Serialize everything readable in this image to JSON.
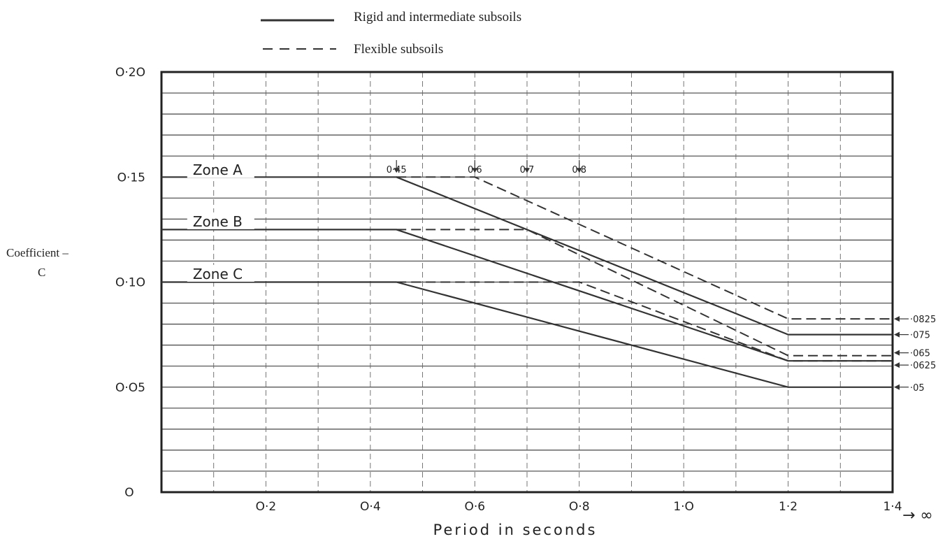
{
  "chart_data": {
    "type": "line",
    "xlabel": "Period in seconds",
    "ylabel_line1": "Coefficient –",
    "ylabel_line2": "C",
    "xlim": [
      0,
      1.4
    ],
    "ylim": [
      0,
      0.2
    ],
    "x_ticks": [
      {
        "v": 0.2,
        "label": "O·2"
      },
      {
        "v": 0.4,
        "label": "O·4"
      },
      {
        "v": 0.6,
        "label": "O·6"
      },
      {
        "v": 0.8,
        "label": "O·8"
      },
      {
        "v": 1.0,
        "label": "1·O"
      },
      {
        "v": 1.2,
        "label": "1·2"
      },
      {
        "v": 1.4,
        "label": "1·4"
      }
    ],
    "x_infinity_label": "→ ∞",
    "y_ticks": [
      {
        "v": 0,
        "label": "O"
      },
      {
        "v": 0.05,
        "label": "O·O5"
      },
      {
        "v": 0.1,
        "label": "O·1O"
      },
      {
        "v": 0.15,
        "label": "O·15"
      },
      {
        "v": 0.2,
        "label": "O·2O"
      }
    ],
    "legend": [
      {
        "label": "Rigid and intermediate subsoils",
        "style": "solid"
      },
      {
        "label": "Flexible subsoils",
        "style": "dashed"
      }
    ],
    "zone_labels": [
      {
        "text": "Zone A",
        "x": 0.06,
        "y": 0.151
      },
      {
        "text": "Zone B",
        "x": 0.06,
        "y": 0.1265
      },
      {
        "text": "Zone C",
        "x": 0.06,
        "y": 0.1015
      }
    ],
    "period_markers": [
      {
        "x": 0.45,
        "label": "0·45"
      },
      {
        "x": 0.6,
        "label": "0·6"
      },
      {
        "x": 0.7,
        "label": "0·7"
      },
      {
        "x": 0.8,
        "label": "0·8"
      }
    ],
    "right_labels": [
      {
        "y": 0.0825,
        "label": "·0825"
      },
      {
        "y": 0.075,
        "label": "·075"
      },
      {
        "y": 0.065,
        "label": "·065"
      },
      {
        "y": 0.0625,
        "label": "·0625"
      },
      {
        "y": 0.05,
        "label": "·05"
      }
    ],
    "series": [
      {
        "name": "Zone A – Rigid and intermediate subsoils",
        "style": "solid",
        "x": [
          0,
          0.45,
          1.2,
          1.4
        ],
        "y": [
          0.15,
          0.15,
          0.075,
          0.075
        ]
      },
      {
        "name": "Zone A – Flexible subsoils",
        "style": "dashed",
        "x": [
          0.45,
          0.6,
          1.2,
          1.4
        ],
        "y": [
          0.15,
          0.15,
          0.0825,
          0.0825
        ]
      },
      {
        "name": "Zone B – Rigid and intermediate subsoils",
        "style": "solid",
        "x": [
          0,
          0.45,
          1.2,
          1.4
        ],
        "y": [
          0.125,
          0.125,
          0.0625,
          0.0625
        ]
      },
      {
        "name": "Zone B – Flexible subsoils",
        "style": "dashed",
        "x": [
          0.45,
          0.7,
          1.2,
          1.4
        ],
        "y": [
          0.125,
          0.125,
          0.065,
          0.065
        ]
      },
      {
        "name": "Zone C – Rigid and intermediate subsoils",
        "style": "solid",
        "x": [
          0,
          0.45,
          1.2,
          1.4
        ],
        "y": [
          0.1,
          0.1,
          0.05,
          0.05
        ]
      },
      {
        "name": "Zone C – Flexible subsoils",
        "style": "dashed",
        "x": [
          0.45,
          0.8,
          1.2,
          1.4
        ],
        "y": [
          0.1,
          0.1,
          0.0625,
          0.0625
        ]
      }
    ],
    "grid": true
  }
}
